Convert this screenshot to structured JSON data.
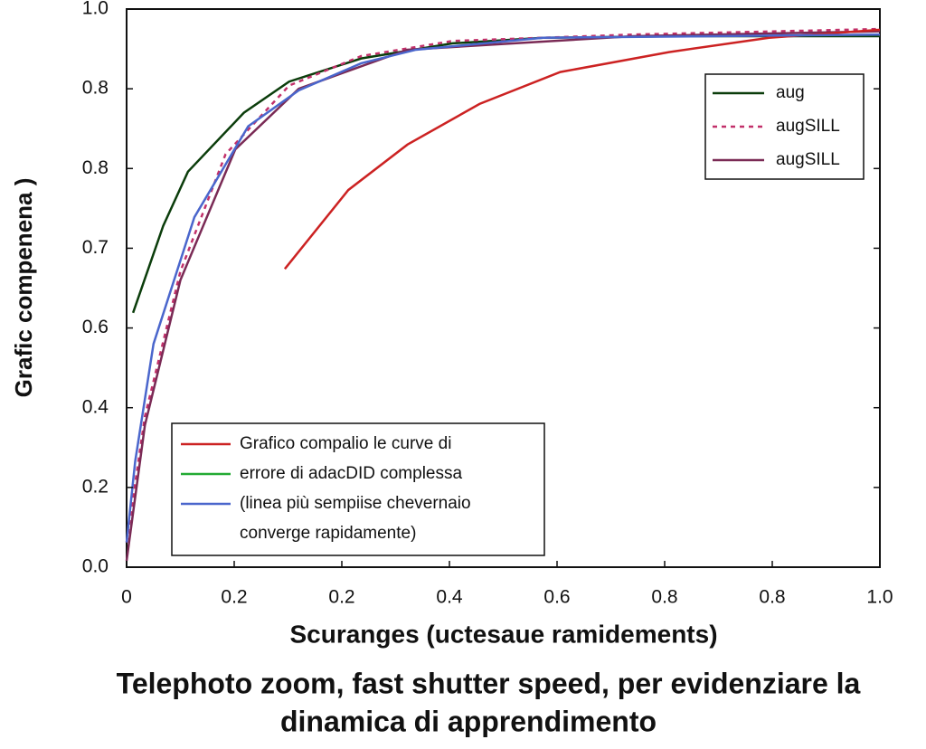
{
  "chart_data": {
    "type": "line",
    "title": [
      "Telephoto zoom, fast shutter speed, per   evidenziare la",
      "dinamica di apprendimento"
    ],
    "xlabel": "Scuranges (uctesaue ramidements)",
    "ylabel": "Grafic compenena )",
    "xlim": [
      0,
      7
    ],
    "ylim": [
      0,
      7
    ],
    "xticks": [
      {
        "value": 0,
        "label": "0"
      },
      {
        "value": 1,
        "label": "0.2"
      },
      {
        "value": 2,
        "label": "0.2"
      },
      {
        "value": 3,
        "label": "0.4"
      },
      {
        "value": 4,
        "label": "0.6"
      },
      {
        "value": 5,
        "label": "0.8"
      },
      {
        "value": 6,
        "label": "0.8"
      },
      {
        "value": 7,
        "label": "1.0"
      }
    ],
    "yticks": [
      {
        "value": 0,
        "label": "0.0"
      },
      {
        "value": 1,
        "label": "0.2"
      },
      {
        "value": 2,
        "label": "0.4"
      },
      {
        "value": 3,
        "label": "0.6"
      },
      {
        "value": 4,
        "label": "0.7"
      },
      {
        "value": 5,
        "label": "0.8"
      },
      {
        "value": 6,
        "label": "0.8"
      },
      {
        "value": 7,
        "label": "1.0"
      }
    ],
    "series": [
      {
        "name": "aug",
        "color": "#0b3d0b",
        "dash": false,
        "x": [
          0.06,
          0.34,
          0.57,
          1.09,
          1.51,
          2.18,
          3.03,
          3.87,
          5.13,
          7
        ],
        "values": [
          3.19,
          4.28,
          4.96,
          5.7,
          6.09,
          6.38,
          6.57,
          6.64,
          6.66,
          6.66
        ]
      },
      {
        "name": "augSILL",
        "color": "#c2306a",
        "dash": true,
        "x": [
          0,
          0.17,
          0.5,
          0.92,
          1.51,
          2.18,
          3.03,
          4.71,
          7
        ],
        "values": [
          0.31,
          1.89,
          3.71,
          5.18,
          6.04,
          6.41,
          6.6,
          6.68,
          6.75
        ]
      },
      {
        "name": "augSILL",
        "color": "#7a2a55",
        "dash": false,
        "x": [
          0,
          0.17,
          0.5,
          1.01,
          1.6,
          2.61,
          4.71,
          7
        ],
        "values": [
          0.08,
          1.78,
          3.6,
          5.24,
          6.0,
          6.49,
          6.66,
          6.72
        ]
      },
      {
        "name": "Grafico compalio le curve di",
        "color": "#cc2222",
        "dash": false,
        "x": [
          1.47,
          2.06,
          2.61,
          3.28,
          4.03,
          5.04,
          5.97,
          7
        ],
        "values": [
          3.74,
          4.73,
          5.3,
          5.81,
          6.21,
          6.46,
          6.64,
          6.74
        ]
      },
      {
        "name": "(linea più sempiise chevernaio",
        "color": "#4a66cc",
        "dash": false,
        "x": [
          0,
          0.08,
          0.25,
          0.63,
          1.13,
          1.6,
          2.18,
          2.69,
          3.87,
          7
        ],
        "values": [
          0.31,
          1.33,
          2.8,
          4.39,
          5.53,
          5.98,
          6.32,
          6.49,
          6.64,
          6.68
        ]
      }
    ],
    "legend_notes": [
      {
        "text": "errore di adacDID complessa",
        "color": "#22aa33"
      },
      {
        "text": "converge  rapidamente)"
      }
    ]
  }
}
